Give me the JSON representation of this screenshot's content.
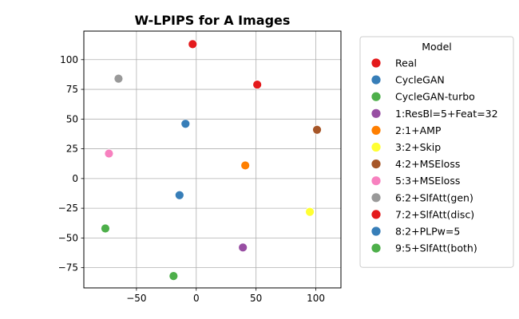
{
  "chart_data": {
    "type": "scatter",
    "title": "W-LPIPS for A Images",
    "xlabel": "",
    "ylabel": "",
    "xlim": [
      -94,
      121
    ],
    "ylim": [
      -92,
      124
    ],
    "xticks": [
      -50,
      0,
      50,
      100
    ],
    "yticks": [
      -75,
      -50,
      -25,
      0,
      25,
      50,
      75,
      100
    ],
    "grid": true,
    "legend": {
      "title": "Model",
      "placement": "outside-right"
    },
    "series": [
      {
        "name": "Real",
        "color": "#e41a1c",
        "points": [
          {
            "x": -3,
            "y": 113
          }
        ]
      },
      {
        "name": "CycleGAN",
        "color": "#377eb8",
        "points": [
          {
            "x": -9,
            "y": 46
          }
        ]
      },
      {
        "name": "CycleGAN-turbo",
        "color": "#4daf4a",
        "points": [
          {
            "x": -19,
            "y": -82
          }
        ]
      },
      {
        "name": "1:ResBl=5+Feat=32",
        "color": "#984ea3",
        "points": [
          {
            "x": 39,
            "y": -58
          }
        ]
      },
      {
        "name": "2:1+AMP",
        "color": "#ff7f00",
        "points": [
          {
            "x": 41,
            "y": 11
          }
        ]
      },
      {
        "name": "3:2+Skip",
        "color": "#ffff33",
        "points": [
          {
            "x": 95,
            "y": -28
          }
        ]
      },
      {
        "name": "4:2+MSEloss",
        "color": "#a65628",
        "points": [
          {
            "x": 101,
            "y": 41
          }
        ]
      },
      {
        "name": "5:3+MSEloss",
        "color": "#f781bf",
        "points": [
          {
            "x": -73,
            "y": 21
          }
        ]
      },
      {
        "name": "6:2+SlfAtt(gen)",
        "color": "#999999",
        "points": [
          {
            "x": -65,
            "y": 84
          }
        ]
      },
      {
        "name": "7:2+SlfAtt(disc)",
        "color": "#e41a1c",
        "points": [
          {
            "x": 51,
            "y": 79
          }
        ]
      },
      {
        "name": "8:2+PLPw=5",
        "color": "#377eb8",
        "points": [
          {
            "x": -14,
            "y": -14
          }
        ]
      },
      {
        "name": "9:5+SlfAtt(both)",
        "color": "#4daf4a",
        "points": [
          {
            "x": -76,
            "y": -42
          }
        ]
      }
    ]
  }
}
